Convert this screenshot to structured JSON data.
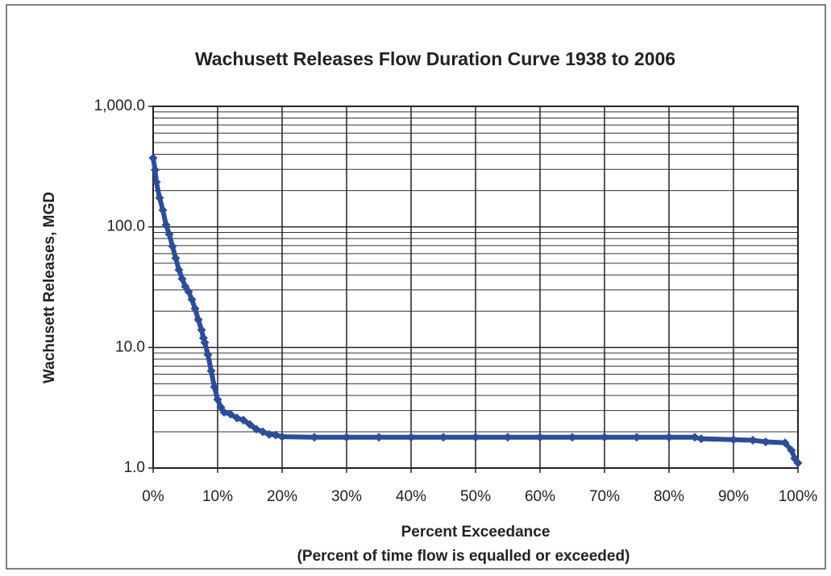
{
  "chart_data": {
    "type": "scatter",
    "title": "Wachusett Releases Flow Duration Curve 1938 to 2006",
    "xlabel": "Percent Exceedance",
    "xlabel_sub": "(Percent of time flow is equalled or exceeded)",
    "ylabel": "Wachusett Releases, MGD",
    "ylog": true,
    "grid": true,
    "minor_grid": true,
    "xlim": [
      0,
      100
    ],
    "ylim": [
      1,
      1000
    ],
    "xticks": [
      {
        "value": 0,
        "label": "0%"
      },
      {
        "value": 10,
        "label": "10%"
      },
      {
        "value": 20,
        "label": "20%"
      },
      {
        "value": 30,
        "label": "30%"
      },
      {
        "value": 40,
        "label": "40%"
      },
      {
        "value": 50,
        "label": "50%"
      },
      {
        "value": 60,
        "label": "60%"
      },
      {
        "value": 70,
        "label": "70%"
      },
      {
        "value": 80,
        "label": "80%"
      },
      {
        "value": 90,
        "label": "90%"
      },
      {
        "value": 100,
        "label": "100%"
      }
    ],
    "yticks": [
      {
        "value": 1,
        "label": "1.0"
      },
      {
        "value": 10,
        "label": "10.0"
      },
      {
        "value": 100,
        "label": "100.0"
      },
      {
        "value": 1000,
        "label": "1,000.0"
      }
    ],
    "series": [
      {
        "color": "#2a4d9c",
        "x": [
          0,
          0.3,
          0.5,
          1,
          1.5,
          2,
          2.5,
          3,
          3.5,
          4,
          4.5,
          5,
          5.5,
          6,
          6.5,
          7,
          7.5,
          7.8,
          8,
          8.5,
          9,
          9.5,
          10,
          10.5,
          11,
          12,
          13,
          14,
          15,
          16,
          17,
          18,
          19,
          20,
          25,
          30,
          35,
          40,
          45,
          50,
          55,
          60,
          65,
          70,
          75,
          80,
          84,
          85,
          90,
          93,
          95,
          98,
          99,
          99.5,
          100
        ],
        "values": [
          373,
          297,
          235,
          174,
          138,
          104,
          87,
          69,
          55,
          44,
          37,
          32,
          29,
          25,
          21,
          17,
          14,
          12,
          11,
          8.7,
          6.4,
          4.7,
          3.7,
          3.2,
          2.9,
          2.8,
          2.6,
          2.5,
          2.3,
          2.1,
          2.0,
          1.9,
          1.88,
          1.82,
          1.8,
          1.8,
          1.8,
          1.8,
          1.8,
          1.8,
          1.8,
          1.8,
          1.8,
          1.8,
          1.8,
          1.8,
          1.8,
          1.75,
          1.72,
          1.7,
          1.65,
          1.62,
          1.4,
          1.2,
          1.1
        ]
      }
    ]
  }
}
